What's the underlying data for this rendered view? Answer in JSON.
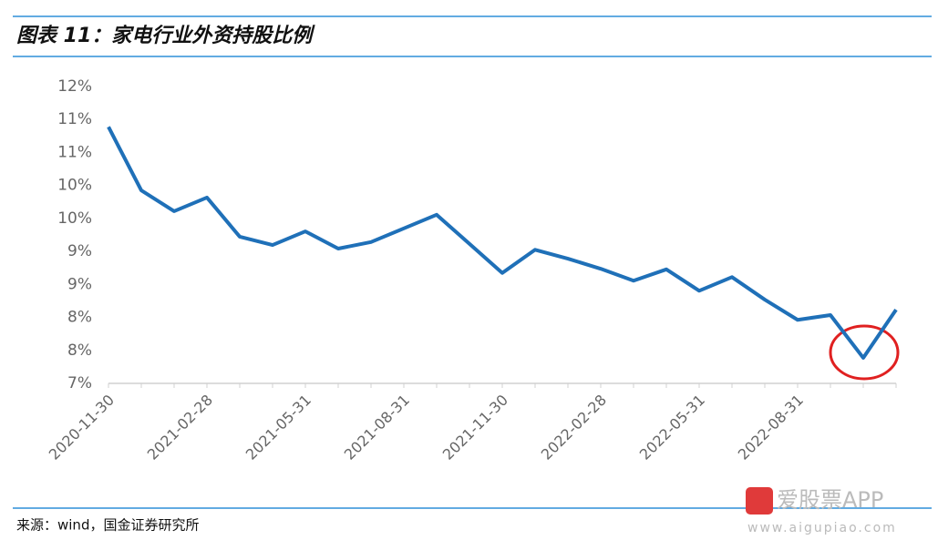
{
  "chart_data": {
    "type": "line",
    "title": "图表 11：家电行业外资持股比例",
    "source": "来源：wind，国金证券研究所",
    "watermark": "爱股票APP",
    "watermark_url": "www.aigupiao.com",
    "categories": [
      "2020-11-30",
      null,
      null,
      "2021-02-28",
      null,
      null,
      "2021-05-31",
      null,
      null,
      "2021-08-31",
      null,
      null,
      "2021-11-30",
      null,
      null,
      "2022-02-28",
      null,
      null,
      "2022-05-31",
      null,
      null,
      "2022-08-31",
      null,
      null,
      null
    ],
    "series": [
      {
        "color": "#1f70b8",
        "values": [
          11.32,
          10.25,
          9.9,
          10.13,
          9.47,
          9.33,
          9.56,
          9.27,
          9.38,
          9.61,
          9.84,
          9.35,
          8.86,
          9.25,
          9.1,
          8.93,
          8.73,
          8.92,
          8.56,
          8.79,
          8.41,
          8.07,
          8.15,
          7.43,
          8.24
        ]
      }
    ],
    "ylim": [
      7,
      12
    ],
    "yticks": [
      {
        "value": 7,
        "label": "7%"
      },
      {
        "value": 7.5556,
        "label": "8%"
      },
      {
        "value": 8.1111,
        "label": "8%"
      },
      {
        "value": 8.6667,
        "label": "9%"
      },
      {
        "value": 9.2222,
        "label": "9%"
      },
      {
        "value": 9.7778,
        "label": "10%"
      },
      {
        "value": 10.3333,
        "label": "10%"
      },
      {
        "value": 10.8889,
        "label": "11%"
      },
      {
        "value": 11.4444,
        "label": "11%"
      },
      {
        "value": 12,
        "label": "12%"
      }
    ],
    "grid": false
  }
}
